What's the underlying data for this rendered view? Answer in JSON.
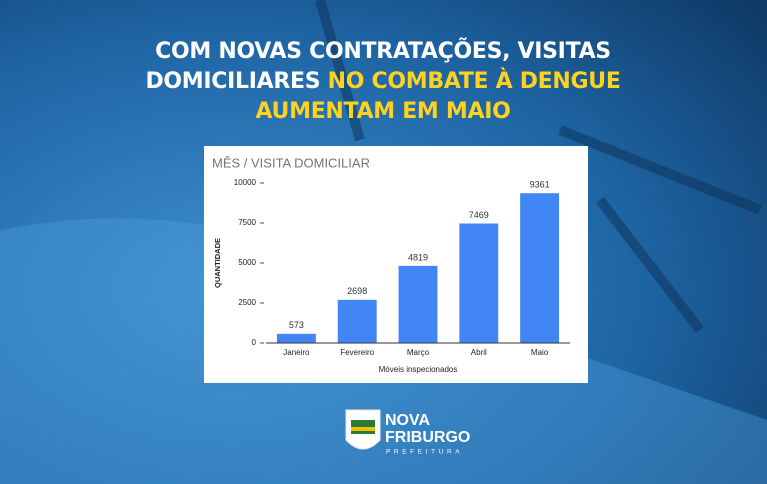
{
  "headline": {
    "line1": "COM NOVAS CONTRATAÇÕES, VISITAS",
    "line2a": "DOMICILIARES",
    "line2b": "NO COMBATE À DENGUE",
    "line3": "AUMENTAM EM MAIO"
  },
  "logo": {
    "name1": "NOVA",
    "name2": "FRIBURGO",
    "sub": "PREFEITURA"
  },
  "chart_data": {
    "type": "bar",
    "title": "MÊS / VISITA DOMICILIAR",
    "categories": [
      "Janeiro",
      "Fevereiro",
      "Março",
      "Abril",
      "Maio"
    ],
    "values": [
      573,
      2698,
      4819,
      7469,
      9361
    ],
    "color": "#4285f4",
    "ylim": [
      0,
      10000
    ],
    "yticks": [
      0,
      2500,
      5000,
      7500,
      10000
    ],
    "grid": false,
    "xlabel": "Móveis inspecionados",
    "ylabel": "QUANTIDADE"
  }
}
